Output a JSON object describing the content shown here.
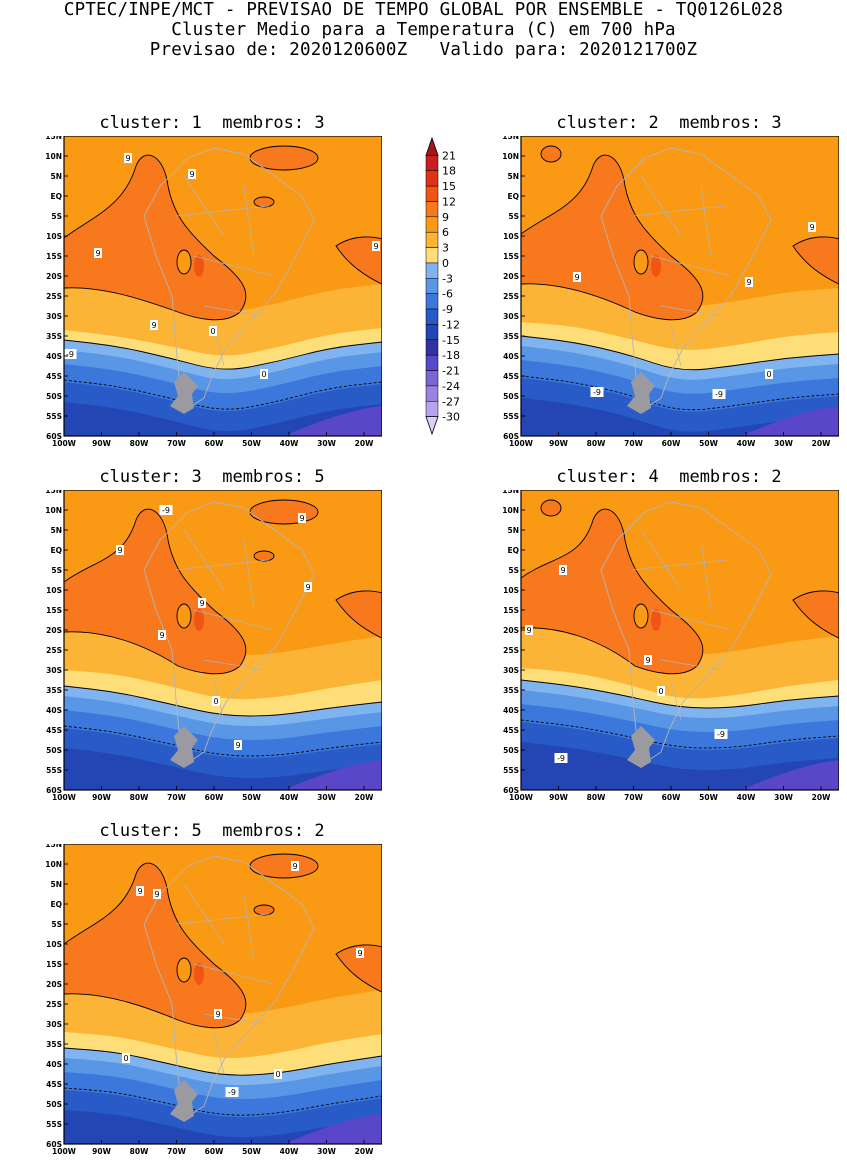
{
  "header": {
    "line1": "CPTEC/INPE/MCT - PREVISAO DE TEMPO GLOBAL POR ENSEMBLE - TQ0126L028",
    "line2": "Cluster Medio para a Temperatura (C) em 700 hPa",
    "line3": "Previsao de: 2020120600Z   Valido para: 2020121700Z"
  },
  "panels": [
    {
      "title": "cluster: 1  membros: 3"
    },
    {
      "title": "cluster: 2  membros: 3"
    },
    {
      "title": "cluster: 3  membros: 5"
    },
    {
      "title": "cluster: 4  membros: 2"
    },
    {
      "title": "cluster: 5  membros: 2"
    }
  ],
  "axes": {
    "lat_labels": [
      "15N",
      "10N",
      "5N",
      "EQ",
      "5S",
      "10S",
      "15S",
      "20S",
      "25S",
      "30S",
      "35S",
      "40S",
      "45S",
      "50S",
      "55S",
      "60S"
    ],
    "lon_labels": [
      "100W",
      "90W",
      "80W",
      "70W",
      "60W",
      "50W",
      "40W",
      "30W",
      "20W"
    ]
  },
  "colorbar": {
    "labels": [
      "21",
      "18",
      "15",
      "12",
      "9",
      "6",
      "3",
      "0",
      "-3",
      "-6",
      "-9",
      "-12",
      "-15",
      "-18",
      "-21",
      "-24",
      "-27",
      "-30"
    ],
    "colors": [
      "#a01818",
      "#c81e1e",
      "#e03214",
      "#f05514",
      "#f8781e",
      "#fa9a14",
      "#fbb435",
      "#fdde78",
      "#80b4f0",
      "#5a96e6",
      "#3c78dc",
      "#285ac8",
      "#2346b4",
      "#3232a0",
      "#5a46c8",
      "#7c64d2",
      "#9a82e0",
      "#b9a4ec",
      "#dccdf8"
    ]
  },
  "contour_labels": {
    "p1": [
      "9",
      "9",
      "9",
      "9",
      "9",
      "0",
      "0",
      "-9"
    ],
    "p2": [
      "9",
      "9",
      "9",
      "0",
      "-9",
      "-9"
    ],
    "p3": [
      "9",
      "9",
      "9",
      "9",
      "9",
      "9",
      "0",
      "-9"
    ],
    "p4": [
      "9",
      "9",
      "9",
      "0",
      "-9",
      "-9"
    ],
    "p5": [
      "9",
      "9",
      "9",
      "9",
      "9",
      "0",
      "0",
      "-9"
    ]
  }
}
